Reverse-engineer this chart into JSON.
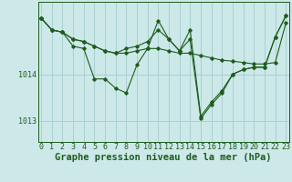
{
  "background_color": "#cce8e8",
  "grid_color": "#aad0d0",
  "line_color": "#1e5c1e",
  "marker_color": "#1e5c1e",
  "xlabel": "Graphe pression niveau de la mer (hPa)",
  "xlabel_fontsize": 7.5,
  "tick_fontsize": 6.0,
  "ytick_labels": [
    "1013",
    "1014"
  ],
  "ytick_values": [
    1013.0,
    1014.0
  ],
  "ylim": [
    1012.55,
    1015.55
  ],
  "xlim": [
    -0.3,
    23.3
  ],
  "series1_x": [
    0,
    1,
    2,
    3,
    4,
    5,
    6,
    7,
    8,
    9,
    10,
    11,
    12,
    13,
    14,
    15,
    16,
    17,
    18,
    19,
    20,
    21,
    22,
    23
  ],
  "series1_y": [
    1015.2,
    1014.95,
    1014.9,
    1014.75,
    1014.7,
    1014.6,
    1014.5,
    1014.45,
    1014.45,
    1014.5,
    1014.55,
    1014.55,
    1014.5,
    1014.45,
    1014.45,
    1014.4,
    1014.35,
    1014.3,
    1014.28,
    1014.25,
    1014.22,
    1014.22,
    1014.25,
    1015.1
  ],
  "series2_x": [
    0,
    1,
    2,
    3,
    4,
    5,
    6,
    7,
    8,
    9,
    10,
    11,
    12,
    13,
    14,
    15,
    16,
    17,
    18,
    19,
    20,
    21,
    22,
    23
  ],
  "series2_y": [
    1015.2,
    1014.95,
    1014.9,
    1014.6,
    1014.55,
    1013.9,
    1013.9,
    1013.7,
    1013.6,
    1014.2,
    1014.55,
    1015.15,
    1014.75,
    1014.5,
    1014.75,
    1013.05,
    1013.35,
    1013.6,
    1014.0,
    1014.1,
    1014.15,
    1014.15,
    1014.8,
    1015.25
  ],
  "series3_x": [
    0,
    1,
    2,
    3,
    4,
    5,
    6,
    7,
    8,
    9,
    10,
    11,
    12,
    13,
    14,
    15,
    16,
    17,
    18,
    19,
    20,
    21,
    22,
    23
  ],
  "series3_y": [
    1015.2,
    1014.95,
    1014.9,
    1014.75,
    1014.7,
    1014.6,
    1014.5,
    1014.45,
    1014.55,
    1014.6,
    1014.7,
    1014.95,
    1014.75,
    1014.5,
    1014.95,
    1013.1,
    1013.4,
    1013.65,
    1014.0,
    1014.1,
    1014.15,
    1014.15,
    1014.8,
    1015.25
  ],
  "xtick_values": [
    0,
    1,
    2,
    3,
    4,
    5,
    6,
    7,
    8,
    9,
    10,
    11,
    12,
    13,
    14,
    15,
    16,
    17,
    18,
    19,
    20,
    21,
    22,
    23
  ]
}
